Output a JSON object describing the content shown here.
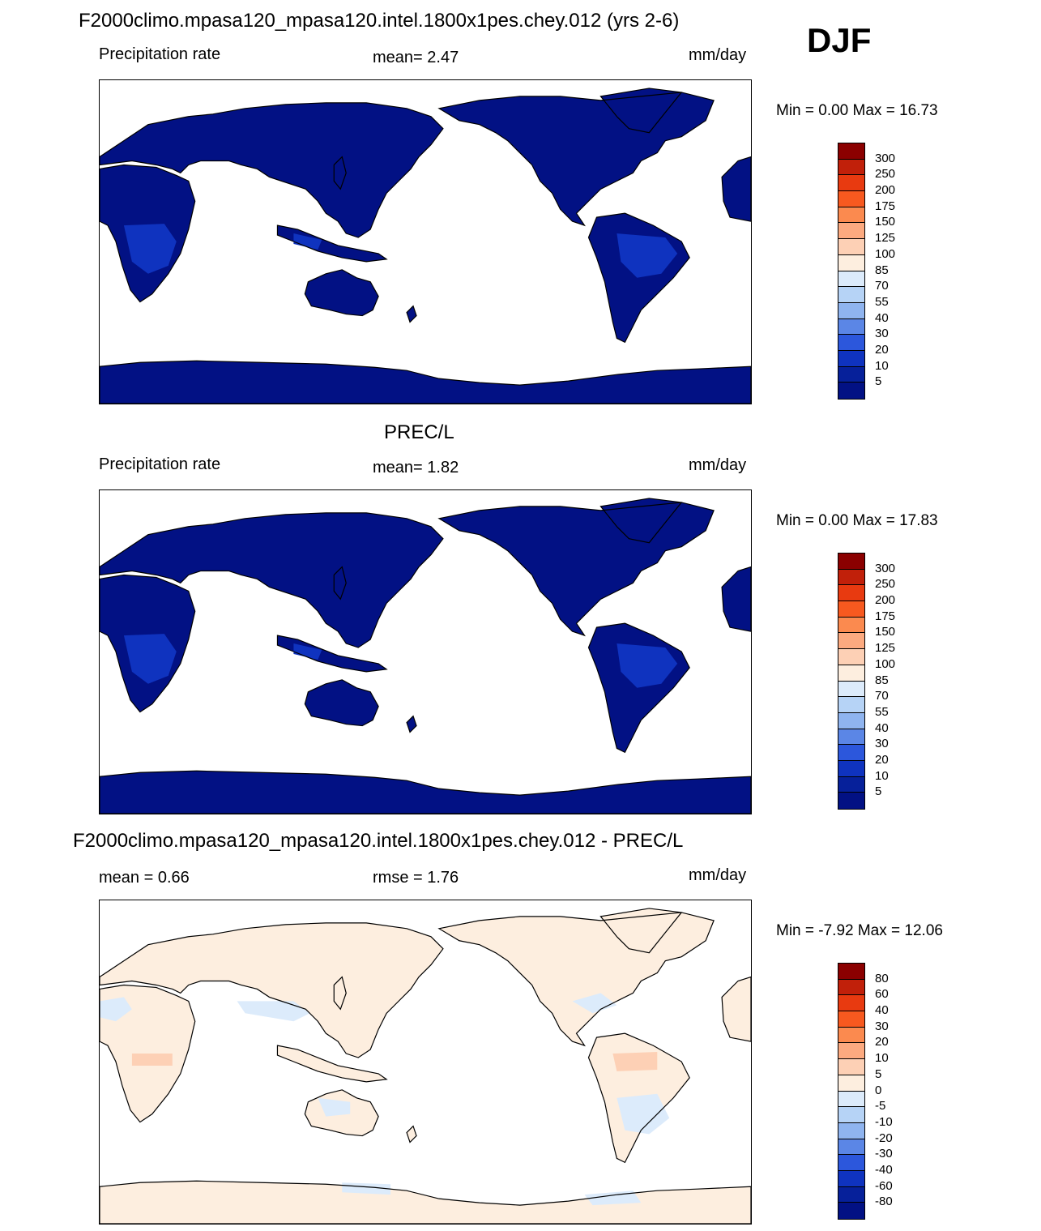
{
  "season": "DJF",
  "panels": [
    {
      "title": "F2000climo.mpasa120_mpasa120.intel.1800x1pes.chey.012 (yrs 2-6)",
      "left": "Precipitation rate",
      "center": "mean=   2.47",
      "right": "mm/day",
      "minmax": "Min =    0.00 Max =  16.73",
      "kind": "precip",
      "colorbar": {
        "labels": [
          "300",
          "250",
          "200",
          "175",
          "150",
          "125",
          "100",
          "85",
          "70",
          "55",
          "40",
          "30",
          "20",
          "10",
          "5"
        ],
        "colors": [
          "#8b0000",
          "#c1200a",
          "#e83a10",
          "#f7591f",
          "#fb8a4f",
          "#fcaa80",
          "#fdd0b5",
          "#fdeedf",
          "#dcebfb",
          "#b6d3f6",
          "#8fb4ef",
          "#5b86e6",
          "#2c57dc",
          "#0f33bf",
          "#06209a",
          "#021184"
        ]
      }
    },
    {
      "title": "PREC/L",
      "left": "Precipitation rate",
      "center": "mean=   1.82",
      "right": "mm/day",
      "minmax": "Min =    0.00 Max =  17.83",
      "kind": "precip",
      "colorbar": {
        "labels": [
          "300",
          "250",
          "200",
          "175",
          "150",
          "125",
          "100",
          "85",
          "70",
          "55",
          "40",
          "30",
          "20",
          "10",
          "5"
        ],
        "colors": [
          "#8b0000",
          "#c1200a",
          "#e83a10",
          "#f7591f",
          "#fb8a4f",
          "#fcaa80",
          "#fdd0b5",
          "#fdeedf",
          "#dcebfb",
          "#b6d3f6",
          "#8fb4ef",
          "#5b86e6",
          "#2c57dc",
          "#0f33bf",
          "#06209a",
          "#021184"
        ]
      }
    },
    {
      "title": "F2000climo.mpasa120_mpasa120.intel.1800x1pes.chey.012 - PREC/L",
      "left": "mean =   0.66",
      "center": "rmse =   1.76",
      "right": "mm/day",
      "minmax": "Min =  -7.92 Max =  12.06",
      "kind": "diff",
      "colorbar": {
        "labels": [
          "80",
          "60",
          "40",
          "30",
          "20",
          "10",
          "5",
          "0",
          "-5",
          "-10",
          "-20",
          "-30",
          "-40",
          "-60",
          "-80"
        ],
        "colors": [
          "#8b0000",
          "#c1200a",
          "#e83a10",
          "#f7591f",
          "#fb8a4f",
          "#fcaa80",
          "#fdd0b5",
          "#fdeedf",
          "#dcebfb",
          "#b6d3f6",
          "#8fb4ef",
          "#5b86e6",
          "#2c57dc",
          "#0f33bf",
          "#06209a",
          "#021184"
        ]
      }
    }
  ],
  "colors": {
    "land_precip": "#021184",
    "wet_precip": "#0f33bf",
    "land_diff": "#fdeedf",
    "wet_diff": "#dcebfb",
    "warm_diff": "#fdd0b5",
    "ocean": "#ffffff"
  }
}
